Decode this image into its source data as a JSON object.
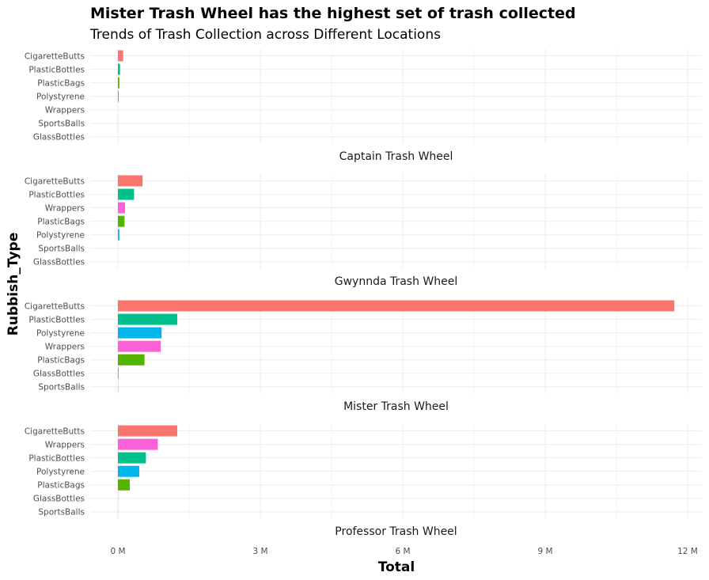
{
  "chart_data": {
    "type": "bar",
    "orientation": "horizontal",
    "title": "Mister Trash Wheel has the highest set of trash collected",
    "subtitle": "Trends of Trash Collection  across Different Locations",
    "xlabel": "Total",
    "ylabel": "Rubbish_Type",
    "xlim": [
      0,
      12000000
    ],
    "x_ticks": [
      {
        "value": 0,
        "label": "0 M"
      },
      {
        "value": 3000000,
        "label": "3 M"
      },
      {
        "value": 6000000,
        "label": "6 M"
      },
      {
        "value": 9000000,
        "label": "9 M"
      },
      {
        "value": 12000000,
        "label": "12 M"
      }
    ],
    "grid": true,
    "legend": "none",
    "colors": {
      "CigaretteButts": "#F8766D",
      "PlasticBottles": "#00C08B",
      "PlasticBags": "#53B400",
      "Polystyrene": "#00B6EB",
      "Wrappers": "#FB61D7",
      "SportsBalls": "#A58AFF",
      "GlassBottles": "#C49A00"
    },
    "facets": [
      {
        "name": "Captain Trash Wheel",
        "bars": [
          {
            "category": "CigaretteButts",
            "value": 110000
          },
          {
            "category": "PlasticBottles",
            "value": 45000
          },
          {
            "category": "PlasticBags",
            "value": 30000
          },
          {
            "category": "Polystyrene",
            "value": 15000
          },
          {
            "category": "Wrappers",
            "value": 0
          },
          {
            "category": "SportsBalls",
            "value": 1000
          },
          {
            "category": "GlassBottles",
            "value": 0
          }
        ]
      },
      {
        "name": "Gwynnda Trash Wheel",
        "bars": [
          {
            "category": "CigaretteButts",
            "value": 520000
          },
          {
            "category": "PlasticBottles",
            "value": 340000
          },
          {
            "category": "Wrappers",
            "value": 150000
          },
          {
            "category": "PlasticBags",
            "value": 140000
          },
          {
            "category": "Polystyrene",
            "value": 30000
          },
          {
            "category": "SportsBalls",
            "value": 0
          },
          {
            "category": "GlassBottles",
            "value": 0
          }
        ]
      },
      {
        "name": "Mister Trash Wheel",
        "bars": [
          {
            "category": "CigaretteButts",
            "value": 11720000
          },
          {
            "category": "PlasticBottles",
            "value": 1250000
          },
          {
            "category": "Polystyrene",
            "value": 920000
          },
          {
            "category": "Wrappers",
            "value": 900000
          },
          {
            "category": "PlasticBags",
            "value": 560000
          },
          {
            "category": "GlassBottles",
            "value": 15000
          },
          {
            "category": "SportsBalls",
            "value": 5000
          }
        ]
      },
      {
        "name": "Professor Trash Wheel",
        "bars": [
          {
            "category": "CigaretteButts",
            "value": 1250000
          },
          {
            "category": "Wrappers",
            "value": 840000
          },
          {
            "category": "PlasticBottles",
            "value": 590000
          },
          {
            "category": "Polystyrene",
            "value": 450000
          },
          {
            "category": "PlasticBags",
            "value": 250000
          },
          {
            "category": "GlassBottles",
            "value": 3000
          },
          {
            "category": "SportsBalls",
            "value": 1500
          }
        ]
      }
    ]
  }
}
